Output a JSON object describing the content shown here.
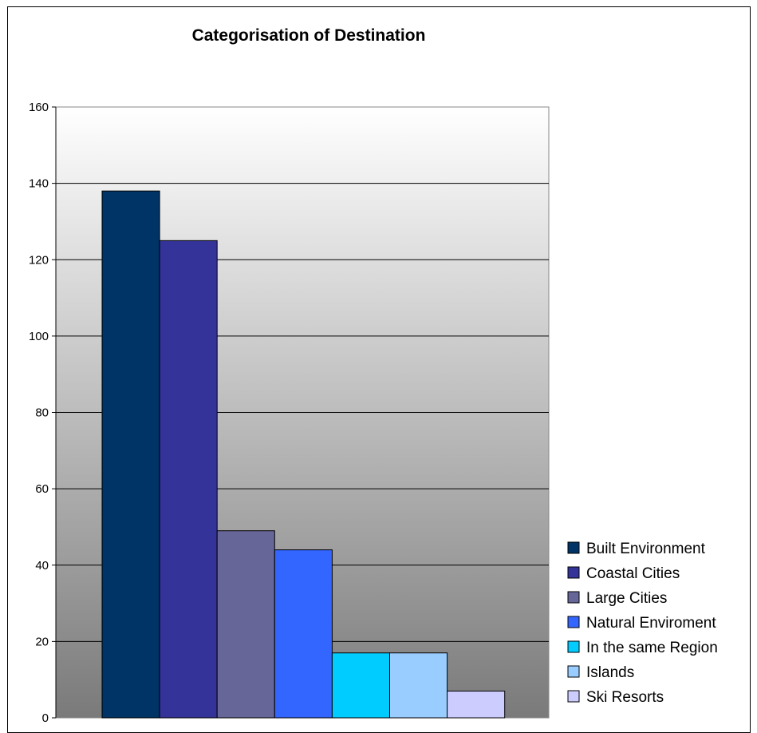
{
  "chart_data": {
    "type": "bar",
    "title": "Categorisation of Destination",
    "xlabel": "",
    "ylabel": "",
    "ylim": [
      0,
      160
    ],
    "yticks": [
      0,
      20,
      40,
      60,
      80,
      100,
      120,
      140,
      160
    ],
    "grid": true,
    "legend_position": "bottom-right",
    "series": [
      {
        "name": "Built Environment",
        "value": 138,
        "color": "#003366"
      },
      {
        "name": "Coastal Cities",
        "value": 125,
        "color": "#333399"
      },
      {
        "name": "Large Cities",
        "value": 49,
        "color": "#666699"
      },
      {
        "name": "Natural Enviroment",
        "value": 44,
        "color": "#3366FF"
      },
      {
        "name": "In the same Region",
        "value": 17,
        "color": "#00CCFF"
      },
      {
        "name": "Islands",
        "value": 17,
        "color": "#99CCFF"
      },
      {
        "name": "Ski Resorts",
        "value": 7,
        "color": "#CCCCFF"
      }
    ]
  }
}
